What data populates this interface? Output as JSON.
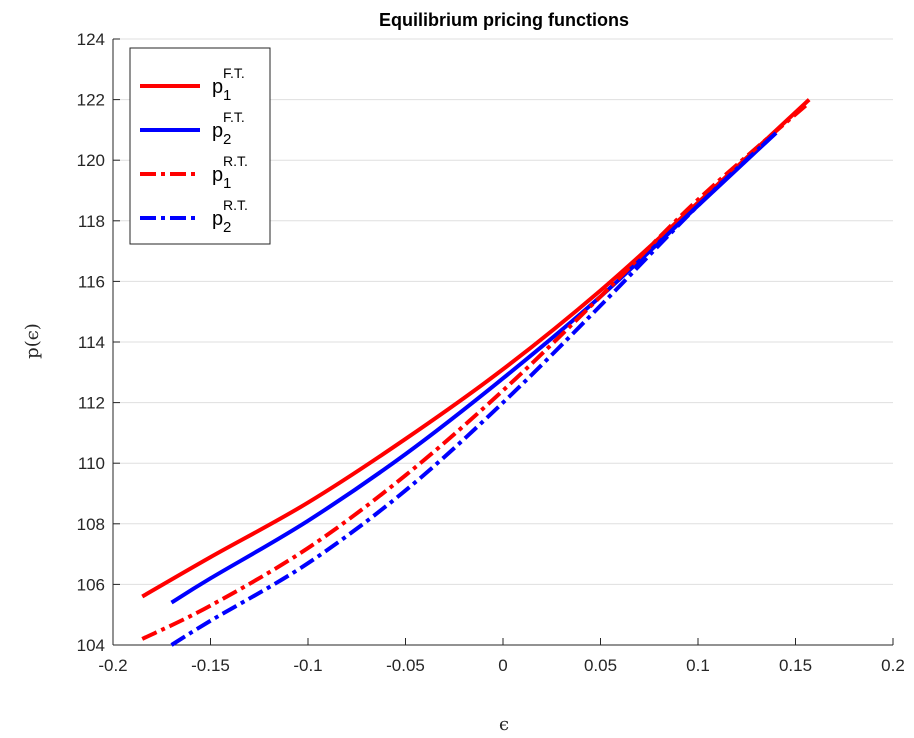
{
  "chart_data": {
    "type": "line",
    "title": "Equilibrium pricing functions",
    "xlabel": "ϵ",
    "ylabel": "p(ϵ)",
    "xlim": [
      -0.2,
      0.2
    ],
    "ylim": [
      104,
      124
    ],
    "xticks": [
      -0.2,
      -0.15,
      -0.1,
      -0.05,
      0,
      0.05,
      0.1,
      0.15,
      0.2
    ],
    "xtick_labels": [
      "-0.2",
      "-0.15",
      "-0.1",
      "-0.05",
      "0",
      "0.05",
      "0.1",
      "0.15",
      "0.2"
    ],
    "yticks": [
      104,
      106,
      108,
      110,
      112,
      114,
      116,
      118,
      120,
      122,
      124
    ],
    "ytick_labels": [
      "104",
      "106",
      "108",
      "110",
      "112",
      "114",
      "116",
      "118",
      "120",
      "122",
      "124"
    ],
    "grid": true,
    "legend_position": "top-left",
    "series": [
      {
        "name": "p1 F.T.",
        "label_base": "p",
        "label_sub": "1",
        "label_sup": "F.T.",
        "color": "#ff0000",
        "style": "solid",
        "x": [
          -0.185,
          -0.15,
          -0.1,
          -0.05,
          0,
          0.05,
          0.1,
          0.157
        ],
        "y": [
          105.6,
          106.9,
          108.7,
          110.8,
          113.1,
          115.7,
          118.6,
          122.0
        ]
      },
      {
        "name": "p2 F.T.",
        "label_base": "p",
        "label_sub": "2",
        "label_sup": "F.T.",
        "color": "#0000ff",
        "style": "solid",
        "x": [
          -0.17,
          -0.15,
          -0.1,
          -0.05,
          0,
          0.05,
          0.1,
          0.14
        ],
        "y": [
          105.4,
          106.2,
          108.1,
          110.3,
          112.8,
          115.5,
          118.5,
          120.9
        ]
      },
      {
        "name": "p1 R.T.",
        "label_base": "p",
        "label_sub": "1",
        "label_sup": "R.T.",
        "color": "#ff0000",
        "style": "dashdot",
        "x": [
          -0.185,
          -0.15,
          -0.1,
          -0.05,
          0,
          0.05,
          0.1,
          0.157
        ],
        "y": [
          104.2,
          105.3,
          107.2,
          109.6,
          112.4,
          115.5,
          118.7,
          121.9
        ]
      },
      {
        "name": "p2 R.T.",
        "label_base": "p",
        "label_sub": "2",
        "label_sup": "R.T.",
        "color": "#0000ff",
        "style": "dashdot",
        "x": [
          -0.17,
          -0.15,
          -0.1,
          -0.05,
          0,
          0.05,
          0.1,
          0.14
        ],
        "y": [
          104.0,
          104.8,
          106.7,
          109.1,
          112.0,
          115.2,
          118.5,
          120.9
        ]
      }
    ]
  }
}
